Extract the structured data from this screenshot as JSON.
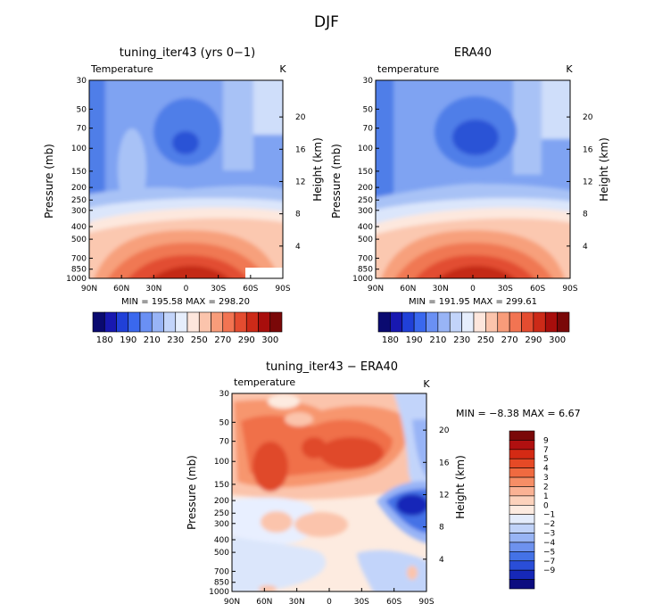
{
  "figure": {
    "title": "DJF"
  },
  "chart_data": [
    {
      "type": "heatmap",
      "title": "tuning_iter43 (yrs 0−1)",
      "left_label": "Temperature",
      "units": "K",
      "ylabel": "Pressure (mb)",
      "ylabel_right": "Height (km)",
      "x_ticks": [
        "90N",
        "60N",
        "30N",
        "0",
        "30S",
        "60S",
        "90S"
      ],
      "y_ticks": [
        "30",
        "50",
        "70",
        "100",
        "150",
        "200",
        "250",
        "300",
        "400",
        "500",
        "700",
        "850",
        "1000"
      ],
      "y_ticks_right": [
        "20",
        "16",
        "12",
        "8",
        "4"
      ],
      "stats": "MIN = 195.58   MAX = 298.20",
      "min": 195.58,
      "max": 298.2
    },
    {
      "type": "heatmap",
      "title": "ERA40",
      "left_label": "temperature",
      "units": "K",
      "ylabel": "Pressure (mb)",
      "ylabel_right": "Height (km)",
      "x_ticks": [
        "90N",
        "60N",
        "30N",
        "0",
        "30S",
        "60S",
        "90S"
      ],
      "y_ticks": [
        "30",
        "50",
        "70",
        "100",
        "150",
        "200",
        "250",
        "300",
        "400",
        "500",
        "700",
        "850",
        "1000"
      ],
      "y_ticks_right": [
        "20",
        "16",
        "12",
        "8",
        "4"
      ],
      "stats": "MIN = 191.95   MAX = 299.61",
      "min": 191.95,
      "max": 299.61
    },
    {
      "type": "heatmap",
      "title": "tuning_iter43 − ERA40",
      "left_label": "temperature",
      "units": "K",
      "ylabel": "Pressure (mb)",
      "ylabel_right": "Height (km)",
      "x_ticks": [
        "90N",
        "60N",
        "30N",
        "0",
        "30S",
        "60S",
        "90S"
      ],
      "y_ticks": [
        "30",
        "50",
        "70",
        "100",
        "150",
        "200",
        "250",
        "300",
        "400",
        "500",
        "700",
        "850",
        "1000"
      ],
      "y_ticks_right": [
        "20",
        "16",
        "12",
        "8",
        "4"
      ],
      "stats": "MIN =  −8.38   MAX =    6.67",
      "min": -8.38,
      "max": 6.67
    }
  ],
  "colorbars": {
    "temperature": {
      "labels": [
        "180",
        "190",
        "210",
        "230",
        "250",
        "270",
        "290",
        "300"
      ],
      "colors": [
        "#0a0a70",
        "#1818b0",
        "#2040d8",
        "#3a68ee",
        "#6a90f4",
        "#98b4f6",
        "#c2d4fa",
        "#e6eefc",
        "#fde6dc",
        "#fbc4ac",
        "#f89c7a",
        "#f27452",
        "#e44c30",
        "#cc2a18",
        "#a80e0c",
        "#7a0808"
      ]
    },
    "difference": {
      "labels": [
        "9",
        "7",
        "5",
        "4",
        "3",
        "2",
        "1",
        "0",
        "−1",
        "−2",
        "−3",
        "−4",
        "−5",
        "−7",
        "−9"
      ],
      "colors": [
        "#7a0808",
        "#b01010",
        "#d42a14",
        "#e64a26",
        "#f06a40",
        "#f68e66",
        "#fab294",
        "#fcd2bc",
        "#fdebe0",
        "#e4ecfb",
        "#c0d2f8",
        "#98b4f4",
        "#6e92ee",
        "#4472e6",
        "#2a4ed8",
        "#1628b8",
        "#0c0c80"
      ]
    }
  }
}
